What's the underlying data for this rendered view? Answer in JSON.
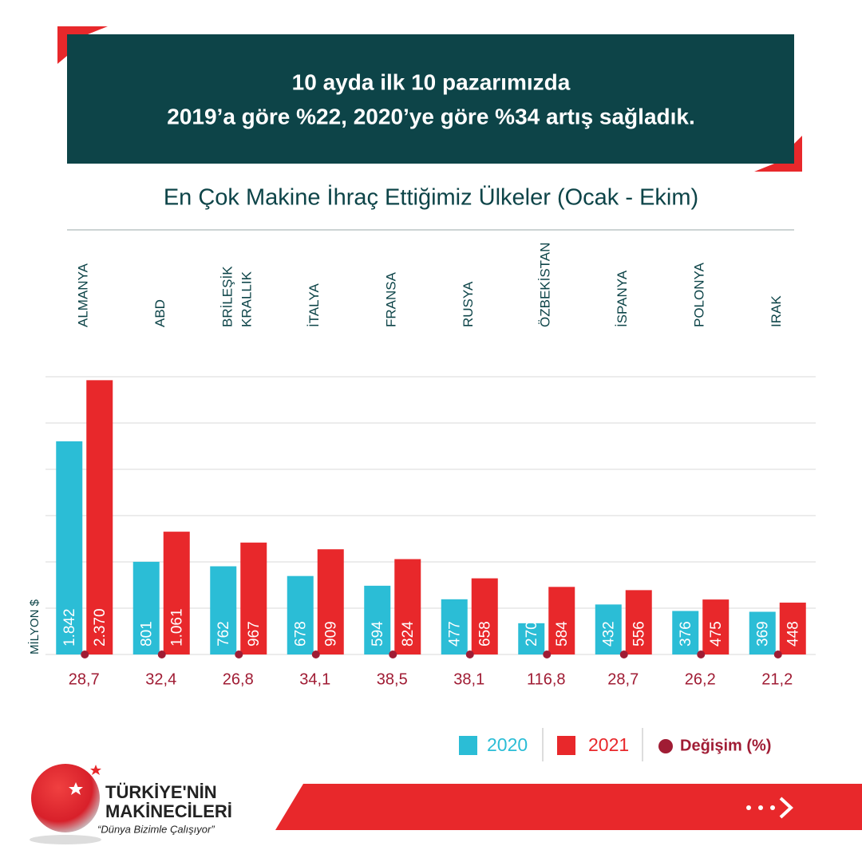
{
  "header": {
    "lines": [
      "10 ayda ilk 10 pazarımızda",
      "2019’a göre %22, 2020’ye göre %34 artış sağladık."
    ]
  },
  "chart_data": {
    "type": "bar",
    "title": "En Çok Makine İhraç Ettiğimiz Ülkeler (Ocak - Ekim)",
    "y_label": "MİLYON $",
    "categories": [
      "ALMANYA",
      "ABD",
      "BRİLEŞİK KRALLIK",
      "İTALYA",
      "FRANSA",
      "RUSYA",
      "ÖZBEKİSTAN",
      "İSPANYA",
      "POLONYA",
      "IRAK"
    ],
    "series": [
      {
        "name": "2020",
        "color": "#2bbdd6",
        "values": [
          1842,
          801,
          762,
          678,
          594,
          477,
          270,
          432,
          376,
          369
        ],
        "value_labels": [
          "1.842",
          "801",
          "762",
          "678",
          "594",
          "477",
          "270",
          "432",
          "376",
          "369"
        ]
      },
      {
        "name": "2021",
        "color": "#e8282b",
        "values": [
          2370,
          1061,
          967,
          909,
          824,
          658,
          584,
          556,
          475,
          448
        ],
        "value_labels": [
          "2.370",
          "1.061",
          "967",
          "909",
          "824",
          "658",
          "584",
          "556",
          "475",
          "448"
        ]
      }
    ],
    "change": {
      "name": "Değişim (%)",
      "color": "#a01c34",
      "values": [
        28.7,
        32.4,
        26.8,
        34.1,
        38.5,
        38.1,
        116.8,
        28.7,
        26.2,
        21.2
      ],
      "value_labels": [
        "28,7",
        "32,4",
        "26,8",
        "34,1",
        "38,5",
        "38,1",
        "116,8",
        "28,7",
        "26,2",
        "21,2"
      ]
    },
    "ylim": [
      0,
      2400
    ],
    "yticks": [
      0,
      400,
      800,
      1200,
      1600,
      2000,
      2400
    ],
    "grid": true
  },
  "brand": {
    "name1": "TÜRKİYE'NİN",
    "name2": "MAKİNECİLERİ",
    "tagline": "“Dünya Bizimle Çalışıyor”"
  }
}
